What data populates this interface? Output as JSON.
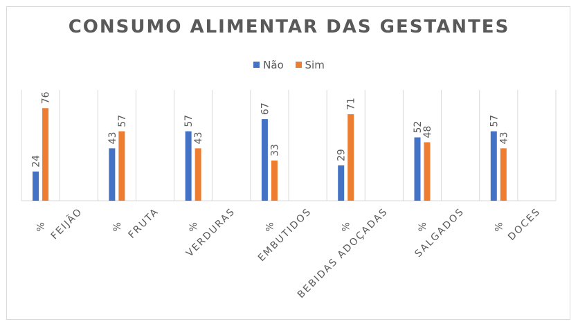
{
  "chart_data": {
    "type": "bar",
    "title": "CONSUMO ALIMENTAR DAS GESTANTES",
    "categories": [
      {
        "label": "%",
        "group": "FEIJÃO"
      },
      {
        "label": "%",
        "group": "FRUTA"
      },
      {
        "label": "%",
        "group": "VERDURAS"
      },
      {
        "label": "%",
        "group": "EMBUTIDOS"
      },
      {
        "label": "%",
        "group": "BEBIDAS ADOÇADAS"
      },
      {
        "label": "%",
        "group": "SALGADOS"
      },
      {
        "label": "%",
        "group": "DOCES"
      }
    ],
    "series": [
      {
        "name": "Não",
        "color": "#4472C4",
        "values": [
          24,
          43,
          57,
          67,
          29,
          52,
          57
        ]
      },
      {
        "name": "Sim",
        "color": "#ED7D31",
        "values": [
          76,
          57,
          43,
          33,
          71,
          48,
          43
        ]
      }
    ],
    "ylim": [
      0,
      100
    ],
    "grid": "vertical category separators",
    "legend": "top-center",
    "data_labels": true
  }
}
